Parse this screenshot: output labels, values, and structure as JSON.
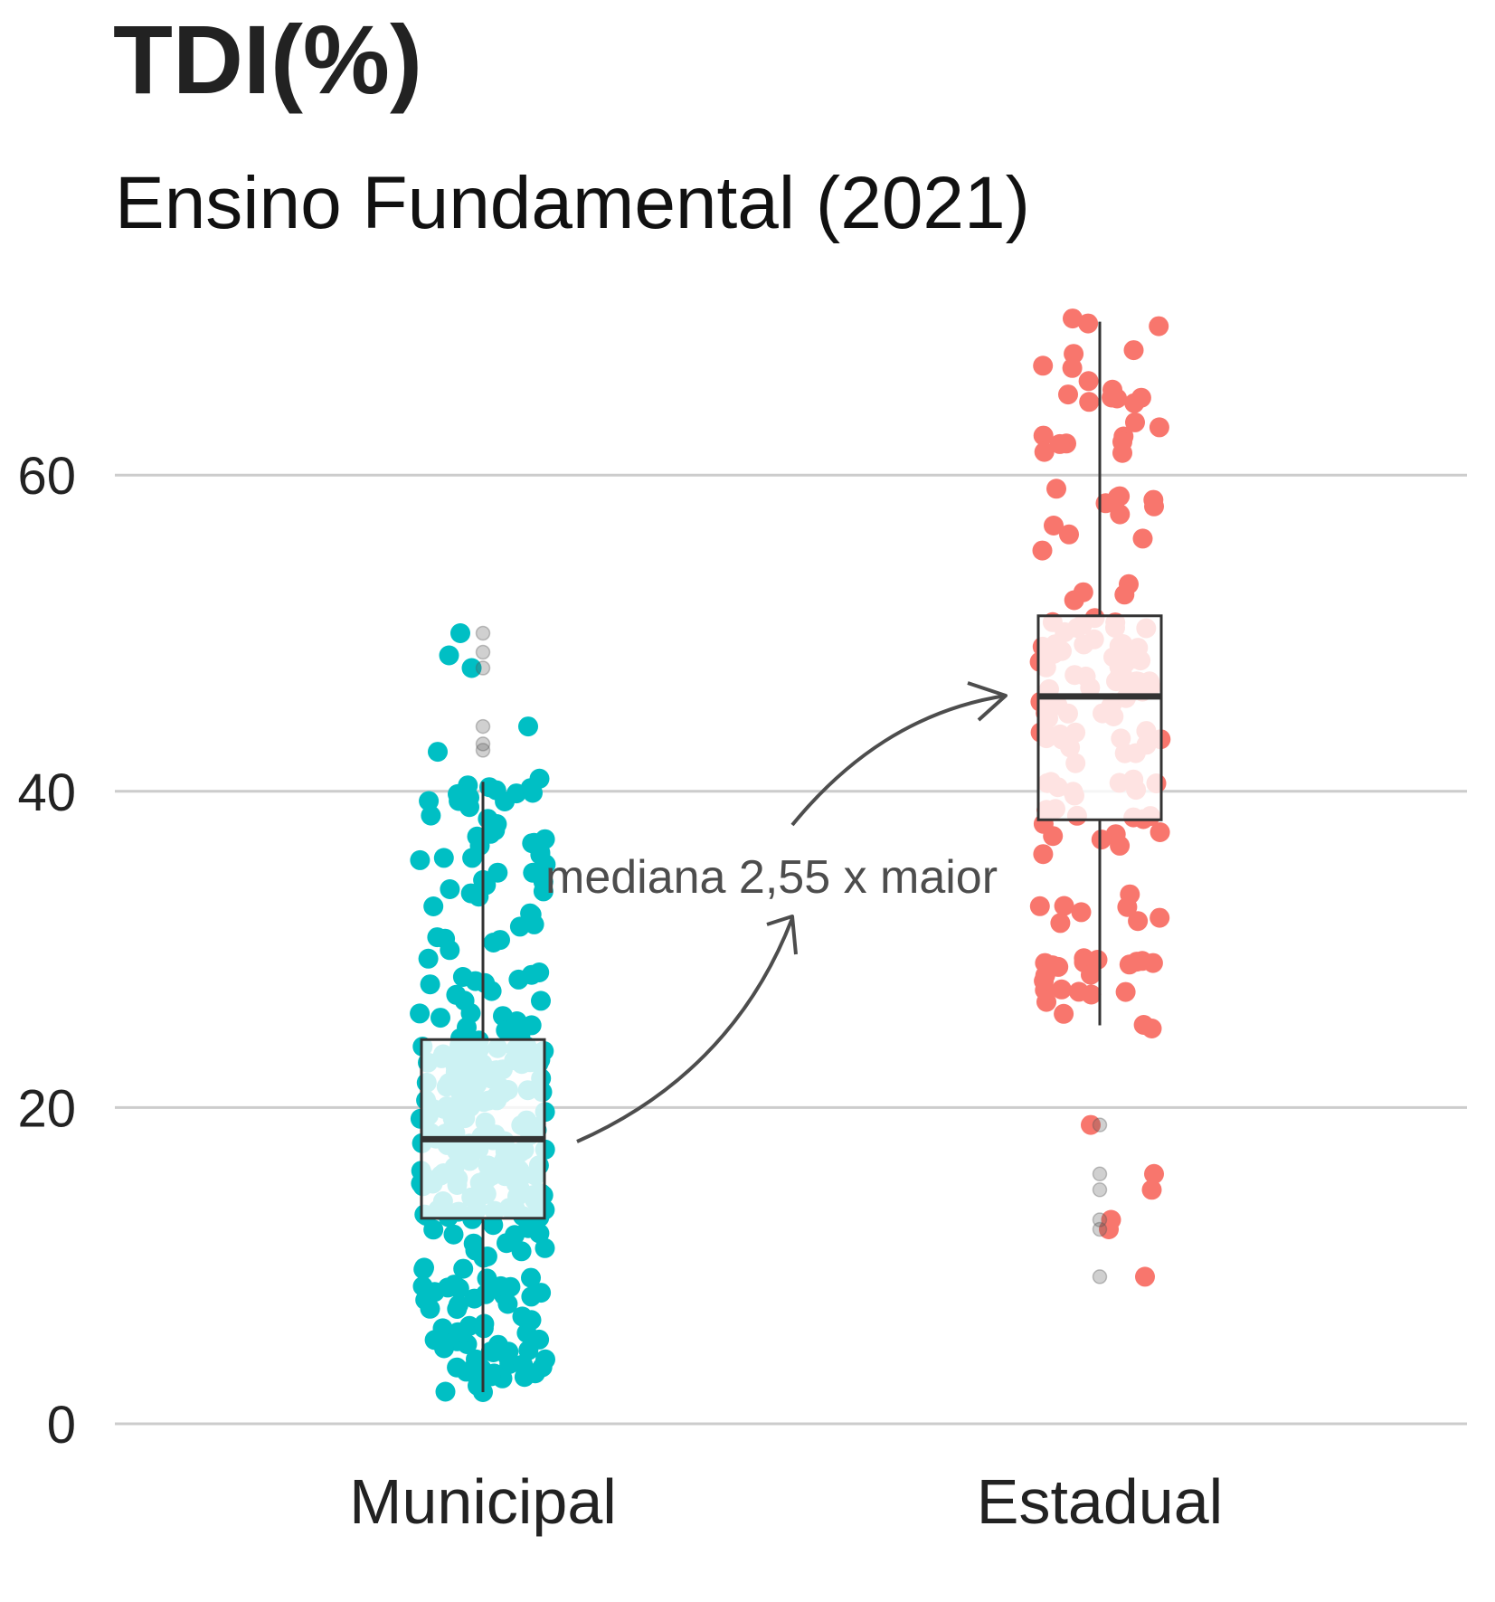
{
  "chart_data": {
    "type": "box",
    "title": "TDI(%)",
    "subtitle": "Ensino Fundamental (2021)",
    "xlabel": "",
    "ylabel": "",
    "ylim": [
      0,
      65
    ],
    "yticks": [
      0,
      20,
      40,
      60
    ],
    "grid": "horizontal",
    "legend": "none",
    "categories": [
      "Municipal",
      "Estadual"
    ],
    "series": [
      {
        "category": "Municipal",
        "color": "#00BFC4",
        "box": {
          "min": 2,
          "q1": 13,
          "median": 18,
          "q3": 24.3,
          "max": 40.6
        },
        "outliers": [
          42.6,
          43.0,
          44.1,
          47.8,
          48.8,
          50.0
        ],
        "jitter": {
          "n": 300,
          "seed": 11,
          "width": 0.28,
          "extra": [
            [
              0.0,
              2.0
            ],
            [
              -0.1,
              50.0
            ],
            [
              -0.15,
              48.6
            ],
            [
              -0.05,
              47.8
            ],
            [
              0.2,
              44.1
            ],
            [
              -0.2,
              42.5
            ],
            [
              0.25,
              40.8
            ],
            [
              0.22,
              39.9
            ]
          ]
        }
      },
      {
        "category": "Estadual",
        "color": "#F8766D",
        "box": {
          "min": 25.2,
          "q1": 38.2,
          "median": 46,
          "q3": 51.1,
          "max": 69.7
        },
        "outliers": [
          9.3,
          12.3,
          12.9,
          14.8,
          15.8,
          18.9
        ],
        "jitter": {
          "n": 150,
          "seed": 23,
          "width": 0.27,
          "extra": [
            [
              -0.12,
              69.9
            ],
            [
              0.15,
              67.9
            ],
            [
              -0.14,
              65.1
            ],
            [
              0.1,
              62.1
            ],
            [
              0.1,
              61.4
            ],
            [
              0.08,
              58.6
            ],
            [
              -0.21,
              29.0
            ],
            [
              0.23,
              25.0
            ],
            [
              -0.04,
              28.4
            ],
            [
              -0.04,
              18.9
            ],
            [
              0.24,
              15.8
            ],
            [
              0.23,
              14.8
            ],
            [
              0.05,
              12.9
            ],
            [
              0.04,
              12.3
            ],
            [
              0.2,
              9.3
            ]
          ]
        }
      }
    ],
    "annotation": {
      "text": "mediana 2,55 x maior"
    }
  }
}
